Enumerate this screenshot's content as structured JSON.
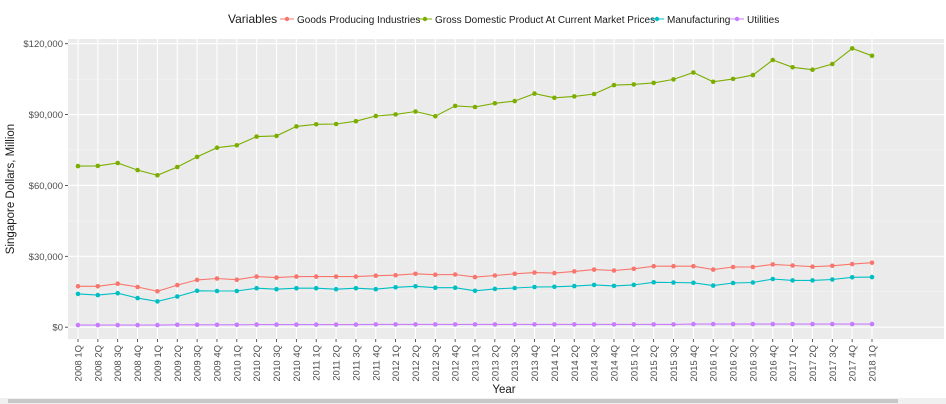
{
  "chart_data": {
    "type": "line",
    "title": "",
    "xlabel": "Year",
    "ylabel": "Singapore Dollars, Million",
    "legend_title": "Variables",
    "legend_position": "top",
    "grid": true,
    "ylim": [
      -5000,
      122000
    ],
    "y_ticks": [
      0,
      30000,
      60000,
      90000,
      120000
    ],
    "y_tick_labels": [
      "$0",
      "$30,000",
      "$60,000",
      "$90,000",
      "$120,000"
    ],
    "categories": [
      "2008 1Q",
      "2008 2Q",
      "2008 3Q",
      "2008 4Q",
      "2009 1Q",
      "2009 2Q",
      "2009 3Q",
      "2009 4Q",
      "2010 1Q",
      "2010 2Q",
      "2010 3Q",
      "2010 4Q",
      "2011 1Q",
      "2011 2Q",
      "2011 3Q",
      "2011 4Q",
      "2012 1Q",
      "2012 2Q",
      "2012 3Q",
      "2012 4Q",
      "2013 1Q",
      "2013 2Q",
      "2013 3Q",
      "2013 4Q",
      "2014 1Q",
      "2014 2Q",
      "2014 3Q",
      "2014 4Q",
      "2015 1Q",
      "2015 2Q",
      "2015 3Q",
      "2015 4Q",
      "2016 1Q",
      "2016 2Q",
      "2016 3Q",
      "2016 4Q",
      "2017 1Q",
      "2017 2Q",
      "2017 3Q",
      "2017 4Q",
      "2018 1Q"
    ],
    "series": [
      {
        "name": "Goods Producing Industries",
        "color": "#F8766D",
        "values": [
          17300,
          17300,
          18400,
          17000,
          15200,
          17800,
          20000,
          20600,
          20100,
          21400,
          21000,
          21400,
          21400,
          21400,
          21400,
          21800,
          22000,
          22600,
          22200,
          22300,
          21200,
          21900,
          22600,
          23100,
          22900,
          23600,
          24400,
          24000,
          24700,
          25800,
          25800,
          25800,
          24400,
          25500,
          25500,
          26600,
          26100,
          25600,
          26000,
          26700,
          27300
        ]
      },
      {
        "name": "Gross Domestic Product At Current Market Prices",
        "color": "#7CAE00",
        "values": [
          68200,
          68300,
          69500,
          66500,
          64300,
          67800,
          72100,
          76000,
          77000,
          80700,
          81000,
          85000,
          85900,
          86000,
          87200,
          89400,
          90100,
          91300,
          89300,
          93700,
          93200,
          94800,
          95700,
          98900,
          97100,
          97700,
          98700,
          102500,
          102800,
          103400,
          104900,
          107800,
          103900,
          105100,
          106700,
          113100,
          110000,
          109000,
          111400,
          118000,
          114900
        ]
      },
      {
        "name": "Manufacturing",
        "color": "#00BFC4",
        "values": [
          14100,
          13600,
          14400,
          12300,
          10900,
          13000,
          15400,
          15300,
          15300,
          16500,
          16100,
          16500,
          16500,
          16100,
          16500,
          16100,
          16900,
          17300,
          16700,
          16700,
          15400,
          16200,
          16600,
          17000,
          17100,
          17400,
          17900,
          17500,
          17900,
          19000,
          18900,
          18800,
          17600,
          18700,
          18900,
          20400,
          19800,
          19800,
          20200,
          21100,
          21200
        ]
      },
      {
        "name": "Utilities",
        "color": "#C77CFF",
        "values": [
          900,
          900,
          900,
          900,
          900,
          1000,
          1000,
          1000,
          1000,
          1100,
          1100,
          1100,
          1100,
          1100,
          1100,
          1200,
          1200,
          1200,
          1200,
          1200,
          1200,
          1200,
          1200,
          1200,
          1200,
          1200,
          1200,
          1200,
          1200,
          1200,
          1200,
          1300,
          1300,
          1300,
          1300,
          1300,
          1300,
          1300,
          1300,
          1300,
          1300
        ]
      }
    ]
  }
}
